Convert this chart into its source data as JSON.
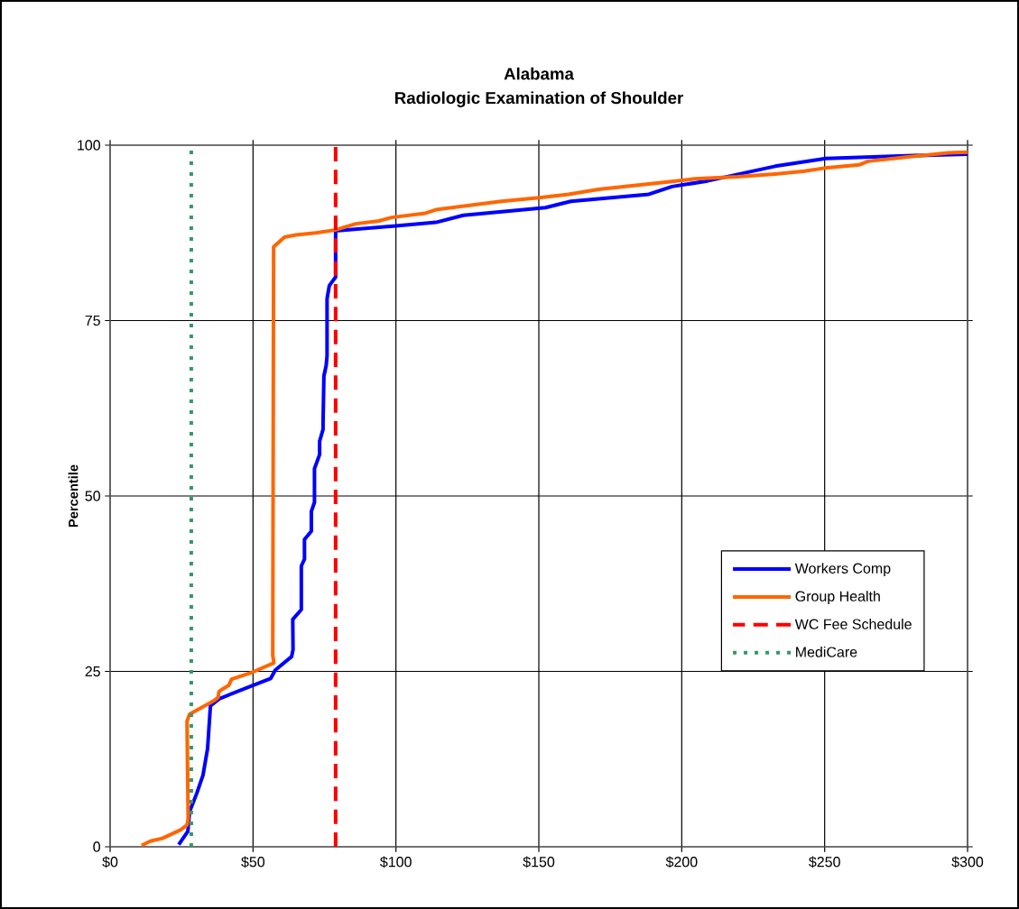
{
  "chart_data": {
    "type": "line",
    "title": "Alabama",
    "subtitle": "Radiologic Examination of Shoulder",
    "ylabel": "Percentile",
    "xlim": [
      0,
      300
    ],
    "ylim": [
      0,
      100
    ],
    "xticks": [
      {
        "value": 0,
        "label": "$0"
      },
      {
        "value": 50,
        "label": "$50"
      },
      {
        "value": 100,
        "label": "$100"
      },
      {
        "value": 150,
        "label": "$150"
      },
      {
        "value": 200,
        "label": "$200"
      },
      {
        "value": 250,
        "label": "$250"
      },
      {
        "value": 300,
        "label": "$300"
      }
    ],
    "yticks": [
      0,
      25,
      50,
      75,
      100
    ],
    "grid": true,
    "legend": "right",
    "marker": "none",
    "line_style": "solid",
    "series": [
      {
        "name": "Workers Comp",
        "color": "#0000ff",
        "x": [
          24.0,
          27.2,
          27.8,
          30.3,
          32.5,
          34.1,
          35.1,
          38.2,
          49.9,
          56.2,
          57.8,
          63.5,
          64.0,
          63.9,
          66.9,
          66.9,
          68.0,
          68.0,
          70.4,
          70.4,
          71.5,
          71.5,
          73.3,
          73.3,
          74.5,
          74.5,
          74.8,
          75.6,
          75.9,
          75.9,
          76.7,
          78.9,
          78.9,
          100,
          114,
          123.6,
          152.3,
          161.2,
          188.5,
          196.6,
          209.0,
          232.7,
          250.4,
          278.4,
          300
        ],
        "values": [
          0.3,
          2.2,
          5.0,
          7.6,
          10.2,
          14.0,
          20.1,
          21.1,
          23.0,
          24.0,
          25.2,
          27.1,
          28.1,
          32.4,
          33.8,
          40.0,
          41.0,
          43.8,
          45.0,
          47.8,
          49.1,
          53.9,
          55.9,
          57.8,
          59.5,
          60.4,
          67.1,
          68.6,
          70.0,
          78.1,
          80.0,
          81.2,
          87.8,
          88.5,
          89.0,
          90.0,
          91.1,
          92.0,
          93.0,
          94.1,
          94.9,
          97.0,
          98.1,
          98.5,
          98.7
        ]
      },
      {
        "name": "Group Health",
        "color": "#ff6600",
        "x": [
          11.0,
          14.1,
          18.3,
          24.6,
          26.9,
          27.3,
          26.9,
          27.8,
          36.6,
          37.8,
          38.1,
          39.0,
          41.5,
          42.5,
          49.9,
          57.3,
          56.9,
          57.2,
          61.0,
          65.0,
          72.0,
          78.6,
          86.0,
          94.1,
          98.5,
          110.3,
          114.0,
          136.9,
          150.1,
          160.4,
          170.8,
          195.8,
          204.6,
          219.4,
          232.7,
          243,
          251,
          262.1,
          265.1,
          278.4,
          293.2,
          300
        ],
        "values": [
          0.2,
          0.8,
          1.2,
          2.4,
          3.1,
          4.0,
          17.9,
          18.9,
          20.9,
          21.3,
          22.1,
          22.4,
          23.0,
          23.9,
          24.9,
          26.2,
          27.3,
          85.5,
          86.9,
          87.2,
          87.5,
          87.9,
          88.8,
          89.2,
          89.7,
          90.3,
          90.8,
          92.0,
          92.5,
          93.0,
          93.7,
          94.8,
          95.2,
          95.5,
          95.9,
          96.3,
          96.8,
          97.2,
          97.7,
          98.3,
          98.9,
          99.0
        ]
      },
      {
        "name": "WC Fee Schedule",
        "color": "#ff0000",
        "line_style": "dashed",
        "x": [
          78.9,
          78.9
        ],
        "values": [
          0,
          100
        ]
      },
      {
        "name": "MediCare",
        "color": "#339966",
        "line_style": "dotted",
        "x": [
          28.4,
          28.4
        ],
        "values": [
          0,
          100
        ]
      }
    ]
  }
}
